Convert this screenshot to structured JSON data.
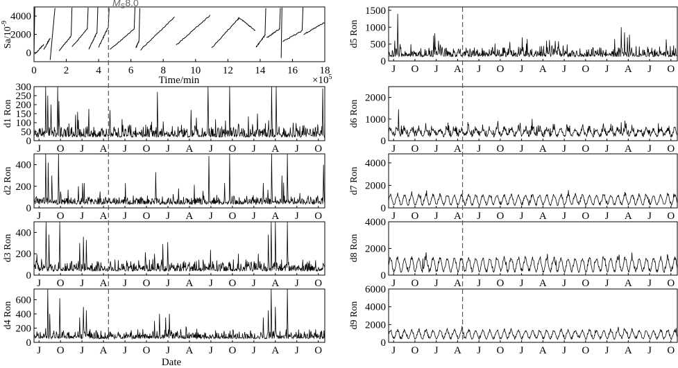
{
  "marker": {
    "label": "M",
    "sub": "S",
    "value": "8.0",
    "month_index": 10.4
  },
  "month_labels": [
    "J",
    "O",
    "J",
    "A",
    "J",
    "O",
    "J",
    "A",
    "J",
    "O",
    "J",
    "A",
    "J",
    "O"
  ],
  "month_positions": [
    0.7,
    3.7,
    6.7,
    9.7,
    12.7,
    15.7,
    18.7,
    21.7,
    24.7,
    27.7,
    30.7,
    33.7,
    36.7,
    39.7
  ],
  "date_xlim": [
    0,
    40.6
  ],
  "xlabel_date": "Date",
  "chart_data": [
    {
      "id": "sa",
      "type": "line",
      "ylabel": "Sa/10",
      "ylabel_sup": "-9",
      "xlabel": "Time/min",
      "x_multiplier": "×10",
      "x_multiplier_sup": "5",
      "xlim": [
        0,
        18
      ],
      "ylim": [
        -1000,
        5000
      ],
      "xticks": [
        0,
        2,
        4,
        6,
        8,
        10,
        12,
        14,
        16,
        18
      ],
      "yticks": [
        0,
        2000,
        4000
      ],
      "marker_x": 5.05,
      "ramps": [
        {
          "x0": 0.0,
          "y0": -200,
          "x1": 0.05,
          "y1": 4900
        },
        {
          "x0": 0.05,
          "y0": -200,
          "x1": 0.6,
          "y1": 900
        },
        {
          "x0": 0.6,
          "y0": 300,
          "x1": 1.0,
          "y1": 1600
        },
        {
          "x0": 1.0,
          "y0": -800,
          "x1": 1.3,
          "y1": 4900
        },
        {
          "x0": 1.55,
          "y0": 200,
          "x1": 2.3,
          "y1": 1800
        },
        {
          "x0": 2.3,
          "y0": 1800,
          "x1": 2.35,
          "y1": 4900
        },
        {
          "x0": 2.35,
          "y0": 600,
          "x1": 3.3,
          "y1": 2600
        },
        {
          "x0": 3.3,
          "y0": 2600,
          "x1": 3.35,
          "y1": 4900
        },
        {
          "x0": 3.4,
          "y0": 400,
          "x1": 3.9,
          "y1": 2200
        },
        {
          "x0": 3.9,
          "y0": 2200,
          "x1": 3.95,
          "y1": 4900
        },
        {
          "x0": 4.0,
          "y0": 600,
          "x1": 4.6,
          "y1": 2800
        },
        {
          "x0": 4.6,
          "y0": 2800,
          "x1": 4.65,
          "y1": 4900
        },
        {
          "x0": 4.7,
          "y0": 300,
          "x1": 6.2,
          "y1": 2600
        },
        {
          "x0": 6.2,
          "y0": 2600,
          "x1": 6.25,
          "y1": 4900
        },
        {
          "x0": 6.3,
          "y0": 500,
          "x1": 6.5,
          "y1": 1300
        },
        {
          "x0": 6.5,
          "y0": 1300,
          "x1": 6.55,
          "y1": 4900
        },
        {
          "x0": 6.6,
          "y0": 300,
          "x1": 8.7,
          "y1": 3900
        },
        {
          "x0": 8.8,
          "y0": 800,
          "x1": 10.9,
          "y1": 4100
        },
        {
          "x0": 11.0,
          "y0": 500,
          "x1": 12.6,
          "y1": 3600
        },
        {
          "x0": 12.6,
          "y0": 3600,
          "x1": 12.7,
          "y1": 3800
        },
        {
          "x0": 12.7,
          "y0": 3800,
          "x1": 13.7,
          "y1": 2400
        },
        {
          "x0": 13.75,
          "y0": 600,
          "x1": 14.3,
          "y1": 1900
        },
        {
          "x0": 14.3,
          "y0": 1900,
          "x1": 14.35,
          "y1": 4900
        },
        {
          "x0": 14.4,
          "y0": 1600,
          "x1": 15.2,
          "y1": 2600
        },
        {
          "x0": 15.2,
          "y0": 2600,
          "x1": 15.25,
          "y1": 4900
        },
        {
          "x0": 15.3,
          "y0": -600,
          "x1": 15.35,
          "y1": 4900
        },
        {
          "x0": 15.4,
          "y0": 1200,
          "x1": 16.6,
          "y1": 2400
        },
        {
          "x0": 16.6,
          "y0": 2400,
          "x1": 16.65,
          "y1": 4900
        },
        {
          "x0": 16.7,
          "y0": 2000,
          "x1": 18.0,
          "y1": 3300
        }
      ]
    },
    {
      "id": "d1",
      "type": "line",
      "ylabel": "d1 Ron",
      "ylim": [
        0,
        300
      ],
      "yticks": [
        0,
        50,
        100,
        150,
        200,
        250,
        300
      ],
      "base": 25,
      "noise": 35,
      "seasonal": 0,
      "seed": 11,
      "spikes": [
        {
          "x": 1.6,
          "v": 300
        },
        {
          "x": 1.9,
          "v": 250
        },
        {
          "x": 2.4,
          "v": 200
        },
        {
          "x": 3.3,
          "v": 300
        },
        {
          "x": 3.5,
          "v": 220
        },
        {
          "x": 6.1,
          "v": 160
        },
        {
          "x": 10.6,
          "v": 170
        },
        {
          "x": 12.3,
          "v": 120
        },
        {
          "x": 17.2,
          "v": 270
        },
        {
          "x": 21.9,
          "v": 170
        },
        {
          "x": 24.3,
          "v": 300
        },
        {
          "x": 27.3,
          "v": 300
        },
        {
          "x": 31.2,
          "v": 150
        },
        {
          "x": 33.2,
          "v": 300
        },
        {
          "x": 33.8,
          "v": 300
        },
        {
          "x": 40.3,
          "v": 290
        }
      ]
    },
    {
      "id": "d2",
      "type": "line",
      "ylabel": "d2 Ron",
      "ylim": [
        0,
        500
      ],
      "yticks": [
        0,
        200,
        400
      ],
      "base": 40,
      "noise": 45,
      "seasonal": 0,
      "seed": 23,
      "spikes": [
        {
          "x": 1.6,
          "v": 500
        },
        {
          "x": 2.0,
          "v": 420
        },
        {
          "x": 2.5,
          "v": 300
        },
        {
          "x": 3.4,
          "v": 500
        },
        {
          "x": 6.2,
          "v": 200
        },
        {
          "x": 6.8,
          "v": 230
        },
        {
          "x": 17.0,
          "v": 330
        },
        {
          "x": 20.2,
          "v": 180
        },
        {
          "x": 24.4,
          "v": 480
        },
        {
          "x": 27.3,
          "v": 500
        },
        {
          "x": 32.0,
          "v": 230
        },
        {
          "x": 33.2,
          "v": 500
        },
        {
          "x": 34.6,
          "v": 300
        },
        {
          "x": 35.4,
          "v": 500
        },
        {
          "x": 40.4,
          "v": 400
        }
      ]
    },
    {
      "id": "d3",
      "type": "line",
      "ylabel": "d3 Ron",
      "ylim": [
        0,
        500
      ],
      "yticks": [
        0,
        200,
        400
      ],
      "base": 45,
      "noise": 55,
      "seasonal": 0,
      "seed": 37,
      "spikes": [
        {
          "x": 1.7,
          "v": 500
        },
        {
          "x": 2.1,
          "v": 380
        },
        {
          "x": 3.6,
          "v": 500
        },
        {
          "x": 6.4,
          "v": 300
        },
        {
          "x": 6.9,
          "v": 360
        },
        {
          "x": 7.3,
          "v": 330
        },
        {
          "x": 16.8,
          "v": 200
        },
        {
          "x": 18.0,
          "v": 290
        },
        {
          "x": 18.7,
          "v": 310
        },
        {
          "x": 31.3,
          "v": 200
        },
        {
          "x": 32.7,
          "v": 380
        },
        {
          "x": 33.1,
          "v": 500
        },
        {
          "x": 33.7,
          "v": 500
        },
        {
          "x": 35.4,
          "v": 500
        }
      ]
    },
    {
      "id": "d4",
      "type": "line",
      "ylabel": "d4 Ron",
      "ylim": [
        0,
        750
      ],
      "yticks": [
        0,
        200,
        400,
        600
      ],
      "base": 60,
      "noise": 65,
      "seasonal": 0,
      "seed": 41,
      "spikes": [
        {
          "x": 1.9,
          "v": 750
        },
        {
          "x": 2.2,
          "v": 400
        },
        {
          "x": 3.6,
          "v": 620
        },
        {
          "x": 6.4,
          "v": 350
        },
        {
          "x": 6.9,
          "v": 500
        },
        {
          "x": 7.3,
          "v": 450
        },
        {
          "x": 16.8,
          "v": 300
        },
        {
          "x": 17.5,
          "v": 400
        },
        {
          "x": 18.4,
          "v": 350
        },
        {
          "x": 18.9,
          "v": 400
        },
        {
          "x": 32.0,
          "v": 350
        },
        {
          "x": 32.7,
          "v": 450
        },
        {
          "x": 33.1,
          "v": 750
        },
        {
          "x": 33.7,
          "v": 500
        },
        {
          "x": 35.4,
          "v": 750
        }
      ]
    },
    {
      "id": "d5",
      "type": "line",
      "ylabel": "d5 Ron",
      "ylim": [
        0,
        1600
      ],
      "yticks": [
        0,
        500,
        1000,
        1500
      ],
      "base": 150,
      "noise": 160,
      "seasonal": 0,
      "seed": 53,
      "spikes": [
        {
          "x": 1.3,
          "v": 1400
        },
        {
          "x": 1.6,
          "v": 500
        },
        {
          "x": 6.3,
          "v": 750
        },
        {
          "x": 6.5,
          "v": 820
        },
        {
          "x": 7.0,
          "v": 600
        },
        {
          "x": 18.8,
          "v": 700
        },
        {
          "x": 19.5,
          "v": 650
        },
        {
          "x": 22.2,
          "v": 600
        },
        {
          "x": 31.8,
          "v": 650
        },
        {
          "x": 32.7,
          "v": 1000
        },
        {
          "x": 33.2,
          "v": 850
        },
        {
          "x": 33.6,
          "v": 700
        },
        {
          "x": 33.9,
          "v": 780
        }
      ]
    },
    {
      "id": "d6",
      "type": "line",
      "ylabel": "d6 Ron",
      "ylim": [
        0,
        2500
      ],
      "yticks": [
        0,
        1000,
        2000
      ],
      "base": 330,
      "noise": 180,
      "seasonal": 140,
      "seed": 61,
      "spikes": [
        {
          "x": 1.4,
          "v": 1450
        },
        {
          "x": 1.8,
          "v": 700
        },
        {
          "x": 3.5,
          "v": 650
        },
        {
          "x": 31.5,
          "v": 700
        },
        {
          "x": 32.7,
          "v": 850
        },
        {
          "x": 33.4,
          "v": 800
        }
      ]
    },
    {
      "id": "d7",
      "type": "line",
      "ylabel": "d7 Ron",
      "ylim": [
        0,
        4800
      ],
      "yticks": [
        0,
        2000,
        4000
      ],
      "base": 650,
      "noise": 150,
      "seasonal": 420,
      "seed": 71,
      "spikes": [
        {
          "x": 1.3,
          "v": 1350
        },
        {
          "x": 4.5,
          "v": 1100
        }
      ]
    },
    {
      "id": "d8",
      "type": "line",
      "ylabel": "d8 Ron",
      "ylim": [
        0,
        4000
      ],
      "yticks": [
        0,
        2000,
        4000
      ],
      "base": 700,
      "noise": 170,
      "seasonal": 480,
      "seed": 83,
      "spikes": [
        {
          "x": 1.3,
          "v": 1400
        },
        {
          "x": 4.8,
          "v": 1250
        }
      ]
    },
    {
      "id": "d9",
      "type": "line",
      "ylabel": "d9 Ron",
      "ylim": [
        0,
        6000
      ],
      "yticks": [
        0,
        2000,
        4000,
        6000
      ],
      "base": 800,
      "noise": 180,
      "seasonal": 450,
      "seed": 97,
      "spikes": [
        {
          "x": 1.3,
          "v": 1500
        },
        {
          "x": 40.4,
          "v": 1600
        }
      ]
    }
  ]
}
